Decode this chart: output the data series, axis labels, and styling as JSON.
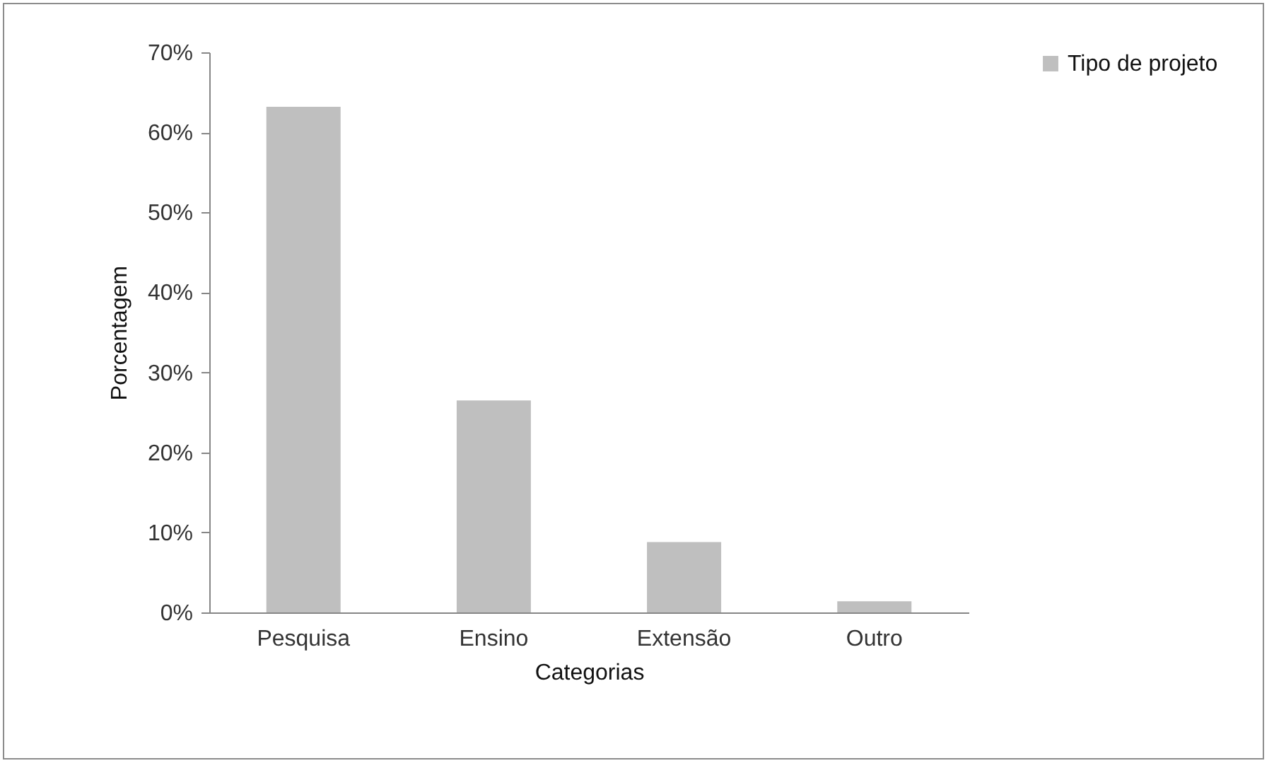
{
  "chart_data": {
    "type": "bar",
    "xlabel": "Categorias",
    "ylabel": "Porcentagem",
    "categories": [
      "Pesquisa",
      "Ensino",
      "Extensão",
      "Outro"
    ],
    "series": [
      {
        "name": "Tipo de projeto",
        "color": "#bfbfbf",
        "values": [
          63.2,
          26.5,
          8.8,
          1.4
        ]
      }
    ],
    "ylim": [
      0,
      70
    ],
    "yticks": [
      {
        "value": 0,
        "label": "0%"
      },
      {
        "value": 10,
        "label": "10%"
      },
      {
        "value": 20,
        "label": "20%"
      },
      {
        "value": 30,
        "label": "30%"
      },
      {
        "value": 40,
        "label": "40%"
      },
      {
        "value": 50,
        "label": "50%"
      },
      {
        "value": 60,
        "label": "60%"
      },
      {
        "value": 70,
        "label": "70%"
      }
    ],
    "legend": "right"
  }
}
